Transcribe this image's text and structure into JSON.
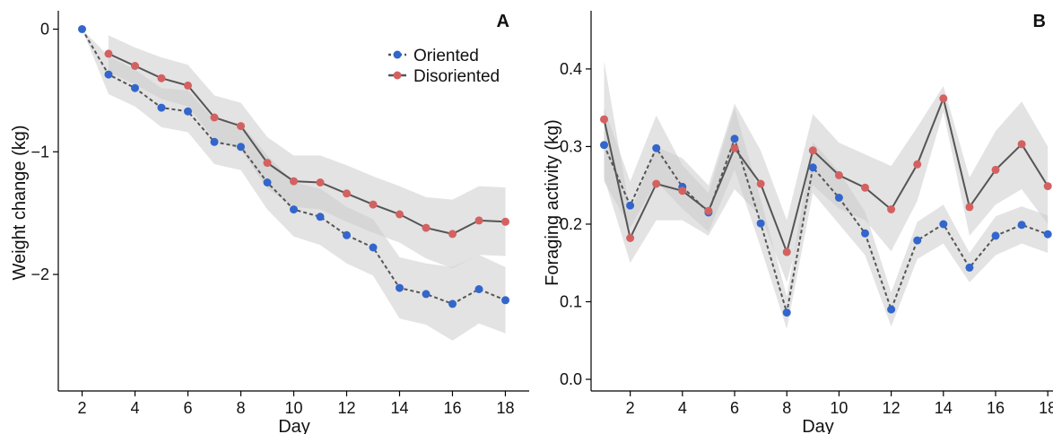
{
  "colors": {
    "oriented": "#3366cc",
    "disoriented": "#d46161",
    "line_solid": "#555555",
    "line_dashed": "#555555",
    "ribbon": "#cccccc"
  },
  "chart_data": [
    {
      "type": "line",
      "panel_label": "A",
      "xlabel": "Day",
      "ylabel": "Weight change (kg)",
      "xlim": [
        1.1,
        18.9
      ],
      "ylim": [
        -2.95,
        0.15
      ],
      "xticks": [
        2,
        4,
        6,
        8,
        10,
        12,
        14,
        16,
        18
      ],
      "yticks": [
        0,
        -1,
        -2
      ],
      "ytick_labels": [
        "0",
        "−1",
        "−2"
      ],
      "grid": false,
      "legend": {
        "position": "top-right",
        "entries": [
          {
            "label": "Oriented",
            "series": 0,
            "line": "dashed"
          },
          {
            "label": "Disoriented",
            "series": 1,
            "line": "solid"
          }
        ]
      },
      "x": [
        2,
        3,
        4,
        5,
        6,
        7,
        8,
        9,
        10,
        11,
        12,
        13,
        14,
        15,
        16,
        17,
        18
      ],
      "series": [
        {
          "name": "Oriented",
          "line": "dashed",
          "values": [
            0,
            -0.37,
            -0.48,
            -0.64,
            -0.67,
            -0.92,
            -0.96,
            -1.25,
            -1.47,
            -1.53,
            -1.68,
            -1.78,
            -2.11,
            -2.16,
            -2.24,
            -2.12,
            -2.21
          ],
          "ribbon_low": [
            0,
            -0.53,
            -0.63,
            -0.8,
            -0.84,
            -1.1,
            -1.15,
            -1.47,
            -1.69,
            -1.76,
            -1.91,
            -2.01,
            -2.36,
            -2.41,
            -2.54,
            -2.4,
            -2.48
          ],
          "ribbon_high": [
            0,
            -0.22,
            -0.33,
            -0.48,
            -0.5,
            -0.74,
            -0.77,
            -1.03,
            -1.25,
            -1.3,
            -1.45,
            -1.55,
            -1.86,
            -1.91,
            -1.94,
            -1.84,
            -1.94
          ]
        },
        {
          "name": "Disoriented",
          "line": "solid",
          "values": [
            null,
            -0.2,
            -0.3,
            -0.4,
            -0.46,
            -0.72,
            -0.79,
            -1.09,
            -1.24,
            -1.25,
            -1.34,
            -1.43,
            -1.51,
            -1.62,
            -1.67,
            -1.56,
            -1.57
          ],
          "ribbon_low": [
            null,
            -0.35,
            -0.45,
            -0.57,
            -0.63,
            -0.9,
            -0.98,
            -1.3,
            -1.45,
            -1.47,
            -1.57,
            -1.66,
            -1.74,
            -1.87,
            -1.95,
            -1.84,
            -1.85
          ],
          "ribbon_high": [
            null,
            -0.05,
            -0.15,
            -0.23,
            -0.29,
            -0.54,
            -0.6,
            -0.88,
            -1.03,
            -1.03,
            -1.11,
            -1.2,
            -1.28,
            -1.37,
            -1.39,
            -1.28,
            -1.29
          ]
        }
      ]
    },
    {
      "type": "line",
      "panel_label": "B",
      "xlabel": "Day",
      "ylabel": "Foraging activity (kg)",
      "xlim": [
        0.5,
        18.2
      ],
      "ylim": [
        -0.015,
        0.475
      ],
      "xticks": [
        2,
        4,
        6,
        8,
        10,
        12,
        14,
        16,
        18
      ],
      "yticks": [
        0.0,
        0.1,
        0.2,
        0.3,
        0.4
      ],
      "ytick_labels": [
        "0.0",
        "0.1",
        "0.2",
        "0.3",
        "0.4"
      ],
      "grid": false,
      "x": [
        1,
        2,
        3,
        4,
        5,
        6,
        7,
        8,
        9,
        10,
        11,
        12,
        13,
        14,
        15,
        16,
        17,
        18
      ],
      "series": [
        {
          "name": "Oriented",
          "line": "dashed",
          "values": [
            0.302,
            0.224,
            0.298,
            0.248,
            0.215,
            0.31,
            0.201,
            0.086,
            0.273,
            0.234,
            0.188,
            0.09,
            0.179,
            0.2,
            0.144,
            0.185,
            0.199,
            0.187
          ],
          "ribbon_low": [
            0.255,
            0.195,
            0.255,
            0.22,
            0.19,
            0.27,
            0.17,
            0.065,
            0.24,
            0.2,
            0.16,
            0.068,
            0.155,
            0.175,
            0.125,
            0.16,
            0.175,
            0.163
          ],
          "ribbon_high": [
            0.35,
            0.255,
            0.34,
            0.276,
            0.24,
            0.35,
            0.232,
            0.107,
            0.306,
            0.268,
            0.216,
            0.112,
            0.203,
            0.225,
            0.163,
            0.21,
            0.223,
            0.211
          ]
        },
        {
          "name": "Disoriented",
          "line": "solid",
          "values": [
            0.335,
            0.182,
            0.252,
            0.243,
            0.217,
            0.298,
            0.252,
            0.164,
            0.295,
            0.263,
            0.247,
            0.219,
            0.277,
            0.362,
            0.222,
            0.27,
            0.303,
            0.249
          ],
          "ribbon_low": [
            0.26,
            0.15,
            0.205,
            0.205,
            0.185,
            0.245,
            0.21,
            0.125,
            0.25,
            0.22,
            0.205,
            0.165,
            0.23,
            0.345,
            0.185,
            0.225,
            0.245,
            0.2
          ],
          "ribbon_high": [
            0.41,
            0.215,
            0.3,
            0.285,
            0.25,
            0.355,
            0.295,
            0.205,
            0.342,
            0.305,
            0.29,
            0.275,
            0.325,
            0.378,
            0.26,
            0.32,
            0.358,
            0.3
          ]
        }
      ]
    }
  ]
}
